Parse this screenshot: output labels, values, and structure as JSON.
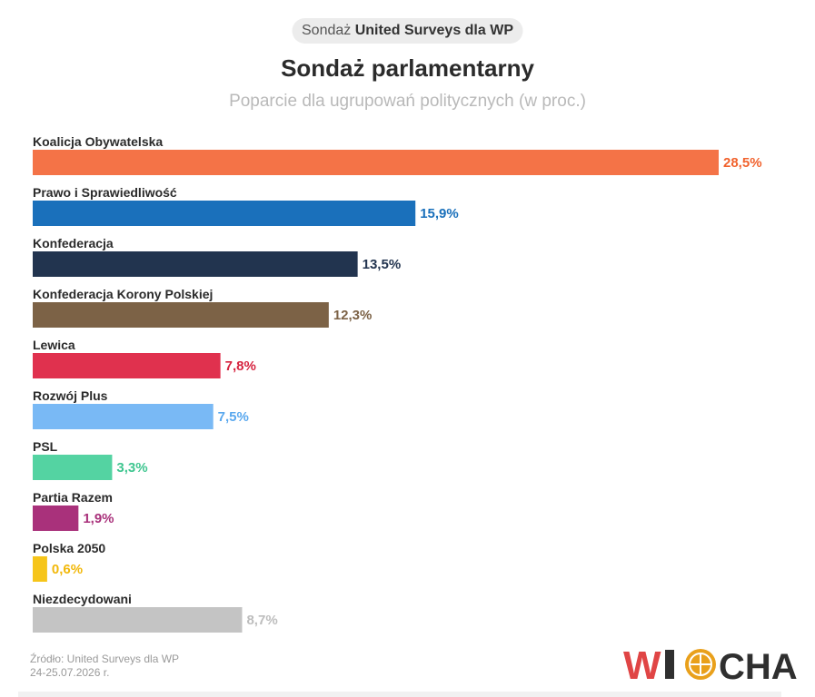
{
  "header": {
    "pill_prefix": "Sondaż",
    "pill_bold": "United Surveys dla WP"
  },
  "chart_data": {
    "type": "bar",
    "orientation": "horizontal",
    "title": "Sondaż parlamentarny",
    "subtitle": "Poparcie dla ugrupowań politycznych (w proc.)",
    "categories": [
      "Koalicja Obywatelska",
      "Prawo i Sprawiedliwość",
      "Konfederacja",
      "Konfederacja Korony Polskiej",
      "Lewica",
      "Rozwój Plus",
      "PSL",
      "Partia Razem",
      "Polska 2050",
      "Niezdecydowani"
    ],
    "values": [
      28.5,
      15.9,
      13.5,
      12.3,
      7.8,
      7.5,
      3.3,
      1.9,
      0.6,
      8.7
    ],
    "value_labels": [
      "28,5%",
      "15,9%",
      "13,5%",
      "12,3%",
      "7,8%",
      "7,5%",
      "3,3%",
      "1,9%",
      "0,6%",
      "8,7%"
    ],
    "colors": [
      "#f47347",
      "#1a70bb",
      "#22344f",
      "#7c6246",
      "#e0314e",
      "#79b9f5",
      "#54d3a2",
      "#a9317b",
      "#f6c51a",
      "#c4c4c4"
    ],
    "label_colors": [
      "#f1622d",
      "#1a70bb",
      "#22344f",
      "#7c6246",
      "#d6233f",
      "#5aa8ee",
      "#3fc690",
      "#a9317b",
      "#f2b80a",
      "#bdbdbd"
    ],
    "xlim": [
      0,
      28.5
    ],
    "grid": false,
    "legend": "none"
  },
  "footer": {
    "source_line1": "Źródło: United Surveys dla WP",
    "source_line2": "24-25.07.2026 r.",
    "logo_text": "WIOCHA"
  }
}
